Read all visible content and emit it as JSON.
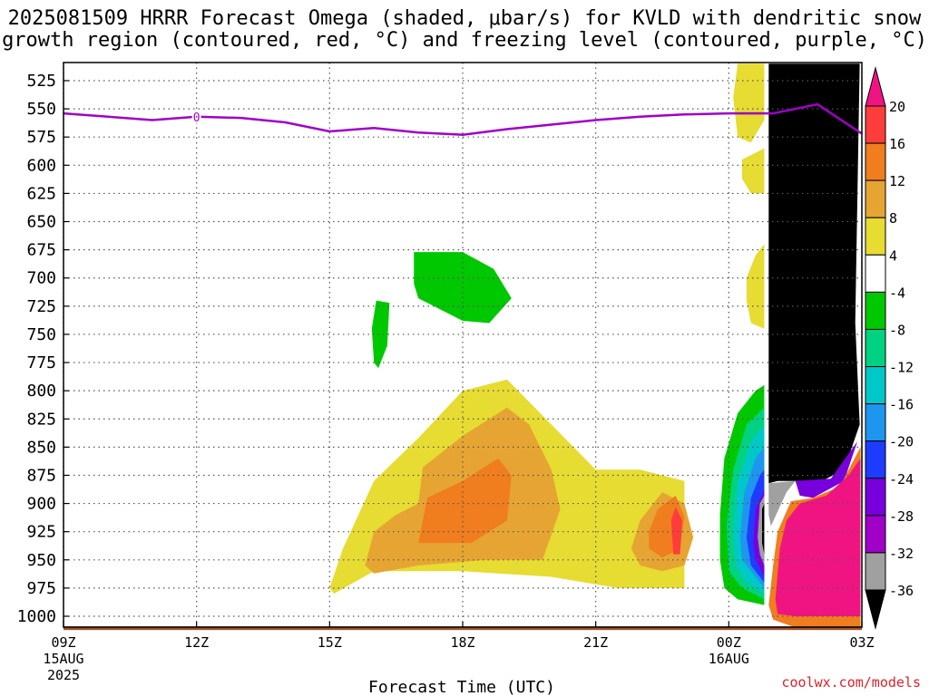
{
  "title": {
    "line1": "2025081509 HRRR Forecast Omega (shaded, μbar/s) for KVLD with dendritic snow",
    "line2": "growth region (contoured, red, °C) and freezing level (contoured, purple, °C)"
  },
  "credit": "coolwx.com/models",
  "colors": {
    "freezing_level": "#a000c8",
    "ground": "#a0522d",
    "grid": "#555555"
  },
  "chart_data": {
    "type": "heatmap",
    "xlabel": "Forecast Time (UTC)",
    "ylabel": "",
    "x_ticks": [
      {
        "hour": 0,
        "label": "09Z",
        "sub1": "15AUG",
        "sub2": "2025"
      },
      {
        "hour": 3,
        "label": "12Z",
        "sub1": "",
        "sub2": ""
      },
      {
        "hour": 6,
        "label": "15Z",
        "sub1": "",
        "sub2": ""
      },
      {
        "hour": 9,
        "label": "18Z",
        "sub1": "",
        "sub2": ""
      },
      {
        "hour": 12,
        "label": "21Z",
        "sub1": "",
        "sub2": ""
      },
      {
        "hour": 15,
        "label": "00Z",
        "sub1": "16AUG",
        "sub2": ""
      },
      {
        "hour": 18,
        "label": "03Z",
        "sub1": "",
        "sub2": ""
      }
    ],
    "xlim": [
      0,
      18
    ],
    "y_ticks": [
      "525",
      "550",
      "575",
      "600",
      "625",
      "650",
      "675",
      "700",
      "725",
      "750",
      "775",
      "800",
      "825",
      "850",
      "875",
      "900",
      "925",
      "950",
      "975",
      "1000"
    ],
    "ylim_hpa": [
      1015,
      510
    ],
    "grid": true,
    "freezing_level": {
      "label": "0",
      "label_hour": 3,
      "points": [
        [
          0,
          554
        ],
        [
          1,
          557
        ],
        [
          2,
          560
        ],
        [
          3,
          557
        ],
        [
          4,
          558
        ],
        [
          5,
          562
        ],
        [
          6,
          570
        ],
        [
          7,
          567
        ],
        [
          8,
          571
        ],
        [
          9,
          573
        ],
        [
          10,
          568
        ],
        [
          11,
          564
        ],
        [
          12,
          560
        ],
        [
          13,
          557
        ],
        [
          14,
          555
        ],
        [
          15,
          554
        ],
        [
          16,
          554
        ],
        [
          17,
          546
        ],
        [
          18,
          572
        ]
      ]
    },
    "colorbar": {
      "labels": [
        "20",
        "16",
        "12",
        "8",
        "4",
        "-4",
        "-8",
        "-12",
        "-16",
        "-20",
        "-24",
        "-28",
        "-32",
        "-36"
      ],
      "bins": [
        {
          "color": "#f01482",
          "from": 20,
          "to": 24
        },
        {
          "color": "#ff3c3c",
          "from": 16,
          "to": 20
        },
        {
          "color": "#f07d1e",
          "from": 12,
          "to": 16
        },
        {
          "color": "#e6a532",
          "from": 8,
          "to": 12
        },
        {
          "color": "#e6dc32",
          "from": 4,
          "to": 8
        },
        {
          "color": "#ffffff",
          "from": -4,
          "to": 4
        },
        {
          "color": "#00c800",
          "from": -8,
          "to": -4
        },
        {
          "color": "#00d282",
          "from": -12,
          "to": -8
        },
        {
          "color": "#00c8c8",
          "from": -16,
          "to": -12
        },
        {
          "color": "#1e96f0",
          "from": -20,
          "to": -16
        },
        {
          "color": "#1e3cff",
          "from": -24,
          "to": -20
        },
        {
          "color": "#7800dc",
          "from": -28,
          "to": -24
        },
        {
          "color": "#a000c8",
          "from": -32,
          "to": -28
        },
        {
          "color": "#a0a0a0",
          "from": -36,
          "to": -32
        },
        {
          "color": "#000000",
          "from": -40,
          "to": -36
        }
      ]
    },
    "omega_regions": [
      {
        "color": "#e6dc32",
        "points": [
          [
            6,
            975
          ],
          [
            6.3,
            940
          ],
          [
            7,
            880
          ],
          [
            8,
            842
          ],
          [
            9,
            800
          ],
          [
            10,
            790
          ],
          [
            11,
            830
          ],
          [
            12,
            870
          ],
          [
            13,
            870
          ],
          [
            14,
            880
          ],
          [
            14,
            975
          ],
          [
            12.5,
            975
          ],
          [
            11,
            965
          ],
          [
            9,
            960
          ],
          [
            8,
            960
          ],
          [
            7,
            960
          ],
          [
            6.1,
            980
          ]
        ]
      },
      {
        "color": "#e6a532",
        "points": [
          [
            6.8,
            955
          ],
          [
            7,
            925
          ],
          [
            7.5,
            910
          ],
          [
            8,
            900
          ],
          [
            8.1,
            868
          ],
          [
            9,
            840
          ],
          [
            10,
            815
          ],
          [
            10.5,
            830
          ],
          [
            11,
            870
          ],
          [
            11.2,
            905
          ],
          [
            10.8,
            950
          ],
          [
            9.5,
            950
          ],
          [
            8,
            955
          ],
          [
            7,
            962
          ]
        ]
      },
      {
        "color": "#e6a532",
        "points": [
          [
            12.8,
            940
          ],
          [
            13,
            915
          ],
          [
            13.5,
            890
          ],
          [
            14,
            900
          ],
          [
            14.2,
            930
          ],
          [
            14,
            955
          ],
          [
            13.5,
            960
          ],
          [
            13,
            955
          ]
        ]
      },
      {
        "color": "#f07d1e",
        "points": [
          [
            8,
            935
          ],
          [
            8.2,
            895
          ],
          [
            9,
            880
          ],
          [
            9.8,
            860
          ],
          [
            10.1,
            875
          ],
          [
            10,
            915
          ],
          [
            9.2,
            935
          ]
        ]
      },
      {
        "color": "#f07d1e",
        "points": [
          [
            13.2,
            925
          ],
          [
            13.4,
            905
          ],
          [
            13.8,
            893
          ],
          [
            14,
            912
          ],
          [
            13.9,
            940
          ],
          [
            13.5,
            948
          ],
          [
            13.2,
            940
          ]
        ]
      },
      {
        "color": "#ff3c3c",
        "points": [
          [
            13.7,
            915
          ],
          [
            13.8,
            903
          ],
          [
            13.95,
            915
          ],
          [
            13.9,
            945
          ],
          [
            13.75,
            945
          ]
        ]
      },
      {
        "color": "#00c800",
        "points": [
          [
            7.9,
            677
          ],
          [
            9,
            677
          ],
          [
            9.7,
            692
          ],
          [
            10.1,
            718
          ],
          [
            9.6,
            740
          ],
          [
            9,
            738
          ],
          [
            8,
            718
          ],
          [
            7.9,
            705
          ]
        ]
      },
      {
        "color": "#00c800",
        "points": [
          [
            7.05,
            720
          ],
          [
            7.35,
            722
          ],
          [
            7.3,
            760
          ],
          [
            7.1,
            780
          ],
          [
            7,
            775
          ],
          [
            6.95,
            745
          ]
        ]
      },
      {
        "color": "#e6dc32",
        "points": [
          [
            15.2,
            510
          ],
          [
            15.8,
            510
          ],
          [
            15.8,
            560
          ],
          [
            15.5,
            580
          ],
          [
            15.2,
            575
          ],
          [
            15.1,
            540
          ]
        ]
      },
      {
        "color": "#e6dc32",
        "points": [
          [
            15.3,
            595
          ],
          [
            15.8,
            585
          ],
          [
            15.8,
            625
          ],
          [
            15.5,
            625
          ],
          [
            15.3,
            612
          ]
        ]
      },
      {
        "color": "#e6dc32",
        "points": [
          [
            15.4,
            700
          ],
          [
            15.6,
            680
          ],
          [
            15.8,
            670
          ],
          [
            15.8,
            745
          ],
          [
            15.5,
            740
          ],
          [
            15.4,
            720
          ]
        ]
      },
      {
        "color": "#00c800",
        "points": [
          [
            14.8,
            910
          ],
          [
            14.9,
            860
          ],
          [
            15.2,
            820
          ],
          [
            15.6,
            800
          ],
          [
            15.8,
            795
          ],
          [
            15.8,
            990
          ],
          [
            15.2,
            985
          ],
          [
            14.9,
            975
          ],
          [
            14.8,
            950
          ]
        ]
      },
      {
        "color": "#00d282",
        "points": [
          [
            14.95,
            920
          ],
          [
            15.1,
            870
          ],
          [
            15.4,
            830
          ],
          [
            15.8,
            815
          ],
          [
            15.8,
            985
          ],
          [
            15.3,
            975
          ],
          [
            15,
            960
          ]
        ]
      },
      {
        "color": "#00c8c8",
        "points": [
          [
            15.1,
            925
          ],
          [
            15.2,
            880
          ],
          [
            15.5,
            845
          ],
          [
            15.8,
            830
          ],
          [
            15.8,
            980
          ],
          [
            15.4,
            970
          ],
          [
            15.15,
            955
          ]
        ]
      },
      {
        "color": "#1e96f0",
        "points": [
          [
            15.25,
            930
          ],
          [
            15.35,
            890
          ],
          [
            15.6,
            860
          ],
          [
            15.8,
            850
          ],
          [
            15.8,
            975
          ],
          [
            15.5,
            960
          ],
          [
            15.3,
            950
          ]
        ]
      },
      {
        "color": "#1e3cff",
        "points": [
          [
            15.4,
            930
          ],
          [
            15.5,
            895
          ],
          [
            15.7,
            875
          ],
          [
            15.8,
            870
          ],
          [
            15.8,
            970
          ],
          [
            15.5,
            955
          ]
        ]
      },
      {
        "color": "#7800dc",
        "points": [
          [
            15.55,
            935
          ],
          [
            15.6,
            905
          ],
          [
            15.8,
            888
          ],
          [
            15.8,
            965
          ],
          [
            15.6,
            950
          ]
        ]
      },
      {
        "color": "#a0a0a0",
        "points": [
          [
            15.65,
            930
          ],
          [
            15.7,
            900
          ],
          [
            15.8,
            893
          ],
          [
            15.8,
            955
          ],
          [
            15.7,
            945
          ]
        ]
      },
      {
        "color": "#000000",
        "points": [
          [
            15.75,
            905
          ],
          [
            15.8,
            900
          ],
          [
            15.8,
            945
          ],
          [
            15.75,
            935
          ]
        ]
      },
      {
        "color": "#000000",
        "points": [
          [
            15.9,
            510
          ],
          [
            17.95,
            510
          ],
          [
            17.85,
            740
          ],
          [
            17.95,
            830
          ],
          [
            17.6,
            870
          ],
          [
            17.1,
            880
          ],
          [
            16.1,
            880
          ],
          [
            15.9,
            882
          ]
        ]
      },
      {
        "color": "#a0a0a0",
        "points": [
          [
            15.9,
            882
          ],
          [
            16.5,
            880
          ],
          [
            16.3,
            890
          ],
          [
            15.95,
            920
          ],
          [
            15.9,
            910
          ]
        ]
      },
      {
        "color": "#7800dc",
        "points": [
          [
            16.5,
            880
          ],
          [
            17.3,
            878
          ],
          [
            17.9,
            845
          ],
          [
            17.6,
            880
          ],
          [
            16.9,
            895
          ],
          [
            16.6,
            893
          ]
        ]
      },
      {
        "color": "#f07d1e",
        "points": [
          [
            15.9,
            990
          ],
          [
            16,
            955
          ],
          [
            16.1,
            925
          ],
          [
            16.4,
            898
          ],
          [
            16.9,
            895
          ],
          [
            17.5,
            885
          ],
          [
            17.97,
            850
          ],
          [
            17.97,
            1010
          ],
          [
            16.5,
            1010
          ],
          [
            16,
            1003
          ]
        ]
      },
      {
        "color": "#f01482",
        "points": [
          [
            16.05,
            985
          ],
          [
            16.15,
            940
          ],
          [
            16.3,
            915
          ],
          [
            16.6,
            900
          ],
          [
            17.2,
            893
          ],
          [
            17.7,
            875
          ],
          [
            17.97,
            860
          ],
          [
            17.97,
            1000
          ],
          [
            16.5,
            1000
          ],
          [
            16.1,
            998
          ]
        ]
      }
    ],
    "ground_band_hpa": [
      1009,
      1015
    ]
  }
}
